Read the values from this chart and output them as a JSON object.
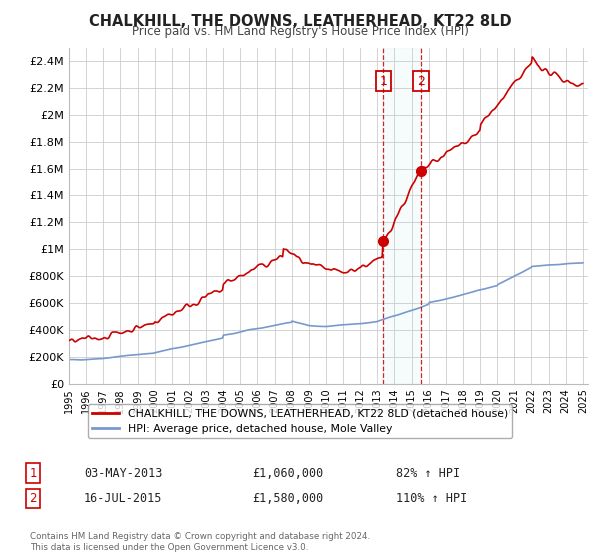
{
  "title": "CHALKHILL, THE DOWNS, LEATHERHEAD, KT22 8LD",
  "subtitle": "Price paid vs. HM Land Registry's House Price Index (HPI)",
  "ylabel_values": [
    "£0",
    "£200K",
    "£400K",
    "£600K",
    "£800K",
    "£1M",
    "£1.2M",
    "£1.4M",
    "£1.6M",
    "£1.8M",
    "£2M",
    "£2.2M",
    "£2.4M"
  ],
  "ylim": [
    0,
    2500000
  ],
  "yticks": [
    0,
    200000,
    400000,
    600000,
    800000,
    1000000,
    1200000,
    1400000,
    1600000,
    1800000,
    2000000,
    2200000,
    2400000
  ],
  "year_start": 1995,
  "year_end": 2025,
  "marker1_year": 2013.35,
  "marker1_value": 1060000,
  "marker2_year": 2015.54,
  "marker2_value": 1580000,
  "marker1_label": "03-MAY-2013",
  "marker1_price": "£1,060,000",
  "marker1_hpi": "82% ↑ HPI",
  "marker2_label": "16-JUL-2015",
  "marker2_price": "£1,580,000",
  "marker2_hpi": "110% ↑ HPI",
  "legend1_label": "CHALKHILL, THE DOWNS, LEATHERHEAD, KT22 8LD (detached house)",
  "legend2_label": "HPI: Average price, detached house, Mole Valley",
  "footnote": "Contains HM Land Registry data © Crown copyright and database right 2024.\nThis data is licensed under the Open Government Licence v3.0.",
  "line1_color": "#cc0000",
  "line2_color": "#7799cc",
  "bg_color": "#ffffff",
  "grid_color": "#cccccc"
}
